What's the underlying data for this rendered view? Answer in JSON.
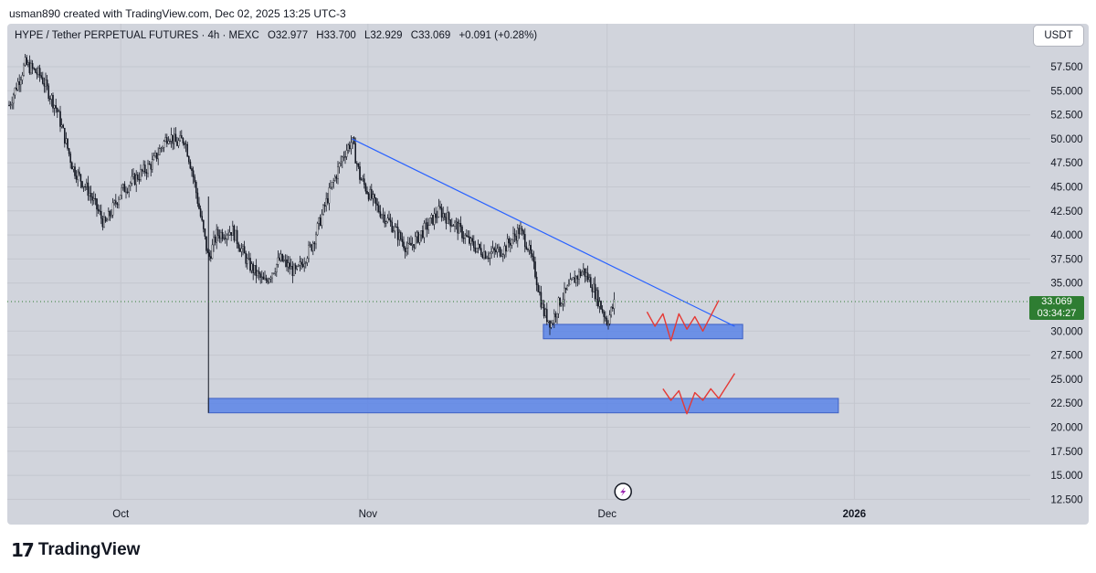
{
  "header": {
    "credit": "usman890 created with TradingView.com, Dec 02, 2025 13:25 UTC-3"
  },
  "legend": {
    "symbol": "HYPE / Tether PERPETUAL FUTURES · 4h · MEXC",
    "open": "O32.977",
    "high": "H33.700",
    "low": "L32.929",
    "close": "C33.069",
    "change": "+0.091 (+0.28%)"
  },
  "currency_button": "USDT",
  "price_tag": {
    "price": "33.069",
    "countdown": "03:34:27"
  },
  "footer": {
    "brand": "TradingView"
  },
  "colors": {
    "up": "#131722",
    "trendline": "#2962ff",
    "zone": "#5b84e8",
    "annotation": "#e53935",
    "price_tag": "#2e7d32"
  },
  "chart_data": {
    "type": "candlestick",
    "title": "",
    "xlabel": "",
    "ylabel": "",
    "x_ticks": [
      "Oct",
      "Nov",
      "Dec",
      "2026"
    ],
    "y_ticks": [
      "57.500",
      "55.000",
      "52.500",
      "50.000",
      "47.500",
      "45.000",
      "42.500",
      "40.000",
      "37.500",
      "35.000",
      "30.000",
      "27.500",
      "25.000",
      "22.500",
      "20.000",
      "17.500",
      "15.000",
      "12.500"
    ],
    "ylim": [
      12.5,
      60
    ],
    "grid": true,
    "current_price": 33.069,
    "price_path": [
      [
        "2025-09-17",
        53.5
      ],
      [
        "2025-09-19",
        57.8
      ],
      [
        "2025-09-21",
        56.5
      ],
      [
        "2025-09-23",
        53.0
      ],
      [
        "2025-09-25",
        47.0
      ],
      [
        "2025-09-27",
        44.5
      ],
      [
        "2025-09-29",
        41.0
      ],
      [
        "2025-10-01",
        44.5
      ],
      [
        "2025-10-03",
        46.0
      ],
      [
        "2025-10-05",
        47.5
      ],
      [
        "2025-10-07",
        50.5
      ],
      [
        "2025-10-08",
        49.5
      ],
      [
        "2025-10-09",
        50.0
      ],
      [
        "2025-10-10",
        46.5
      ],
      [
        "2025-10-11",
        42.0
      ],
      [
        "2025-10-12",
        37.5
      ],
      [
        "2025-10-13",
        40.0
      ],
      [
        "2025-10-15",
        40.5
      ],
      [
        "2025-10-17",
        37.0
      ],
      [
        "2025-10-19",
        35.0
      ],
      [
        "2025-10-21",
        37.5
      ],
      [
        "2025-10-23",
        36.0
      ],
      [
        "2025-10-25",
        39.0
      ],
      [
        "2025-10-27",
        44.0
      ],
      [
        "2025-10-29",
        48.5
      ],
      [
        "2025-10-30",
        49.8
      ],
      [
        "2025-10-31",
        46.0
      ],
      [
        "2025-11-02",
        43.0
      ],
      [
        "2025-11-04",
        41.0
      ],
      [
        "2025-11-06",
        38.5
      ],
      [
        "2025-11-08",
        40.5
      ],
      [
        "2025-11-10",
        42.5
      ],
      [
        "2025-11-12",
        41.0
      ],
      [
        "2025-11-14",
        39.0
      ],
      [
        "2025-11-16",
        38.0
      ],
      [
        "2025-11-18",
        38.5
      ],
      [
        "2025-11-20",
        40.5
      ],
      [
        "2025-11-21",
        39.0
      ],
      [
        "2025-11-22",
        36.0
      ],
      [
        "2025-11-23",
        32.0
      ],
      [
        "2025-11-24",
        30.8
      ],
      [
        "2025-11-25",
        33.0
      ],
      [
        "2025-11-27",
        35.5
      ],
      [
        "2025-11-28",
        36.3
      ],
      [
        "2025-11-29",
        35.0
      ],
      [
        "2025-11-30",
        33.0
      ],
      [
        "2025-12-01",
        31.0
      ],
      [
        "2025-12-02",
        33.069
      ]
    ],
    "drawings": {
      "trendline": {
        "from": [
          "2025-10-30",
          50.0
        ],
        "to": [
          "2025-12-17",
          30.5
        ]
      },
      "zones": [
        {
          "from": "2025-11-23",
          "to": "2025-12-18",
          "low": 29.2,
          "high": 30.7
        },
        {
          "from": "2025-10-12",
          "to": "2025-12-30",
          "low": 21.5,
          "high": 23.0
        }
      ],
      "wick_low": {
        "date": "2025-10-12",
        "low": 21.5
      }
    }
  }
}
